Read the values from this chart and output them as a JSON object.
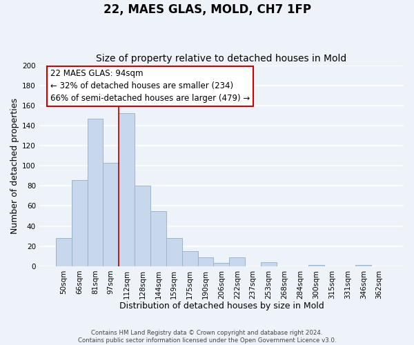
{
  "title": "22, MAES GLAS, MOLD, CH7 1FP",
  "subtitle": "Size of property relative to detached houses in Mold",
  "xlabel": "Distribution of detached houses by size in Mold",
  "ylabel": "Number of detached properties",
  "bar_labels": [
    "50sqm",
    "66sqm",
    "81sqm",
    "97sqm",
    "112sqm",
    "128sqm",
    "144sqm",
    "159sqm",
    "175sqm",
    "190sqm",
    "206sqm",
    "222sqm",
    "237sqm",
    "253sqm",
    "268sqm",
    "284sqm",
    "300sqm",
    "315sqm",
    "331sqm",
    "346sqm",
    "362sqm"
  ],
  "bar_values": [
    28,
    86,
    147,
    103,
    152,
    80,
    55,
    28,
    15,
    9,
    3,
    9,
    0,
    4,
    0,
    0,
    1,
    0,
    0,
    1,
    0
  ],
  "bar_color": "#c8d8ec",
  "bar_edge_color": "#9ab4cc",
  "vline_x": 3.5,
  "vline_color": "#aa0000",
  "ylim": [
    0,
    200
  ],
  "yticks": [
    0,
    20,
    40,
    60,
    80,
    100,
    120,
    140,
    160,
    180,
    200
  ],
  "annotation_title": "22 MAES GLAS: 94sqm",
  "annotation_line1": "← 32% of detached houses are smaller (234)",
  "annotation_line2": "66% of semi-detached houses are larger (479) →",
  "footer1": "Contains HM Land Registry data © Crown copyright and database right 2024.",
  "footer2": "Contains public sector information licensed under the Open Government Licence v3.0.",
  "background_color": "#eef3f9",
  "grid_color": "#ffffff",
  "title_fontsize": 12,
  "subtitle_fontsize": 10,
  "axis_label_fontsize": 9,
  "tick_fontsize": 7.5
}
